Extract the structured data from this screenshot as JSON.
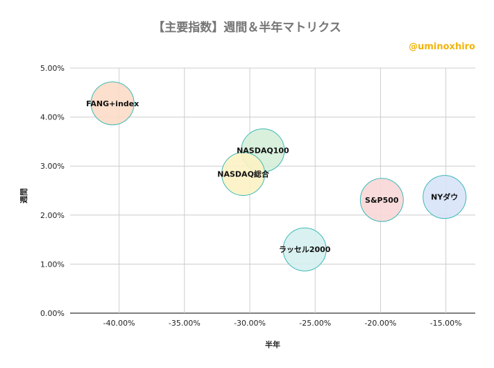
{
  "chart_data": {
    "type": "scatter",
    "variant": "bubble",
    "title": "【主要指数】週間＆半年マトリクス",
    "credit": "@uminoxhiro",
    "xlabel": "半年",
    "ylabel": "週間",
    "xlim": [
      -0.4375,
      -0.1275
    ],
    "ylim": [
      0,
      0.05
    ],
    "x_ticks": [
      -0.4,
      -0.35,
      -0.3,
      -0.25,
      -0.2,
      -0.15
    ],
    "x_tick_labels": [
      "-40.00%",
      "-35.00%",
      "-30.00%",
      "-25.00%",
      "-20.00%",
      "-15.00%"
    ],
    "y_ticks": [
      0,
      0.01,
      0.02,
      0.03,
      0.04,
      0.05
    ],
    "y_tick_labels": [
      "0.00%",
      "1.00%",
      "2.00%",
      "3.00%",
      "4.00%",
      "5.00%"
    ],
    "grid": true,
    "legend": "none",
    "points": [
      {
        "label": "FANG+index",
        "x": -0.405,
        "y": 0.0428,
        "color": "#fcdcc6"
      },
      {
        "label": "NASDAQ100",
        "x": -0.29,
        "y": 0.0332,
        "color": "#d5eed9"
      },
      {
        "label": "NASDAQ総合",
        "x": -0.305,
        "y": 0.0284,
        "color": "#fcf2c4"
      },
      {
        "label": "ラッセル2000",
        "x": -0.258,
        "y": 0.013,
        "color": "#d5f0f0"
      },
      {
        "label": "S&P500",
        "x": -0.199,
        "y": 0.0231,
        "color": "#f9d7d7"
      },
      {
        "label": "NYダウ",
        "x": -0.151,
        "y": 0.0237,
        "color": "#d8e3f8"
      }
    ],
    "bubble_stroke": "#3bb8b5"
  }
}
